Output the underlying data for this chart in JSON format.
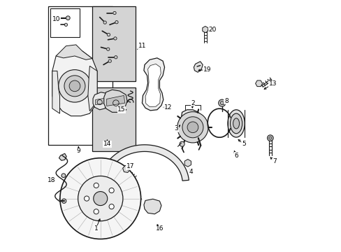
{
  "background_color": "#ffffff",
  "line_color": "#1a1a1a",
  "gray_fill": "#e8e8e8",
  "light_gray": "#d4d4d4",
  "dark_gray": "#888888",
  "figsize": [
    4.89,
    3.6
  ],
  "dpi": 100,
  "labels": {
    "1": [
      0.215,
      0.885,
      0.195,
      0.91
    ],
    "2": [
      0.575,
      0.435,
      0.585,
      0.415
    ],
    "3": [
      0.545,
      0.48,
      0.528,
      0.5
    ],
    "4": [
      0.565,
      0.665,
      0.575,
      0.688
    ],
    "5": [
      0.775,
      0.56,
      0.798,
      0.58
    ],
    "6": [
      0.757,
      0.6,
      0.768,
      0.625
    ],
    "7": [
      0.895,
      0.6,
      0.915,
      0.625
    ],
    "8": [
      0.712,
      0.418,
      0.727,
      0.398
    ],
    "9": [
      0.13,
      0.555,
      0.13,
      0.585
    ],
    "10": [
      0.065,
      0.075,
      0.042,
      0.075
    ],
    "11": [
      0.305,
      0.195,
      0.335,
      0.175
    ],
    "12": [
      0.455,
      0.425,
      0.478,
      0.425
    ],
    "13": [
      0.878,
      0.345,
      0.908,
      0.328
    ],
    "14": [
      0.23,
      0.535,
      0.23,
      0.565
    ],
    "15": [
      0.335,
      0.435,
      0.308,
      0.435
    ],
    "16": [
      0.445,
      0.885,
      0.458,
      0.908
    ],
    "17": [
      0.32,
      0.685,
      0.333,
      0.668
    ],
    "18": [
      0.045,
      0.705,
      0.022,
      0.705
    ],
    "19": [
      0.618,
      0.275,
      0.645,
      0.275
    ],
    "20": [
      0.643,
      0.115,
      0.672,
      0.115
    ]
  }
}
